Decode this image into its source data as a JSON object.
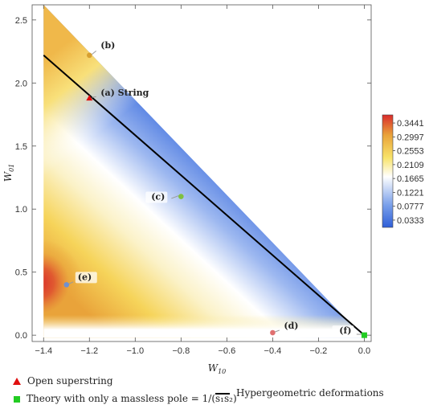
{
  "chart_data": {
    "type": "heatmap",
    "title": "",
    "xlabel": "W",
    "xlabel_sub": "10",
    "ylabel": "W",
    "ylabel_sub": "01",
    "xlim": [
      -1.45,
      0.03
    ],
    "ylim": [
      -0.05,
      2.62
    ],
    "xticks": [
      "-1.4",
      "-1.2",
      "-1.0",
      "-0.8",
      "-0.6",
      "-0.4",
      "-0.2",
      "0.0"
    ],
    "yticks": [
      "0.0",
      "0.5",
      "1.0",
      "1.5",
      "2.0",
      "2.5"
    ],
    "colorbar": {
      "ticks": [
        "0.3441",
        "0.2997",
        "0.2553",
        "0.2109",
        "0.1665",
        "0.1221",
        "0.0777",
        "0.0333"
      ],
      "range": [
        0.01,
        0.37
      ],
      "colors": [
        "#2f5fd8",
        "#7aa0ea",
        "#ffffff",
        "#f8e36a",
        "#e9a33a",
        "#d92b2b"
      ]
    },
    "hypergeometric_line": {
      "x": [
        -1.4,
        0.0
      ],
      "y": [
        2.22,
        0.0
      ]
    },
    "points": [
      {
        "label": "(a) String",
        "x": -1.2,
        "y": 1.88,
        "color": "#e01010",
        "shape": "triangle"
      },
      {
        "label": "(b)",
        "x": -1.2,
        "y": 2.22,
        "color": "#d8a030",
        "shape": "circle"
      },
      {
        "label": "(c)",
        "x": -0.8,
        "y": 1.1,
        "color": "#7fc040",
        "shape": "circle"
      },
      {
        "label": "(d)",
        "x": -0.4,
        "y": 0.02,
        "color": "#e07070",
        "shape": "circle"
      },
      {
        "label": "(e)",
        "x": -1.3,
        "y": 0.4,
        "color": "#7090d0",
        "shape": "circle"
      },
      {
        "label": "(f)",
        "x": 0.0,
        "y": 0.0,
        "color": "#22cc22",
        "shape": "square"
      }
    ]
  },
  "legend": {
    "open_superstring": "Open superstring",
    "massless_pole": "Theory with only a massless pole = 1/(s₁s₂)",
    "hypergeometric": "Hypergeometric deformations"
  }
}
